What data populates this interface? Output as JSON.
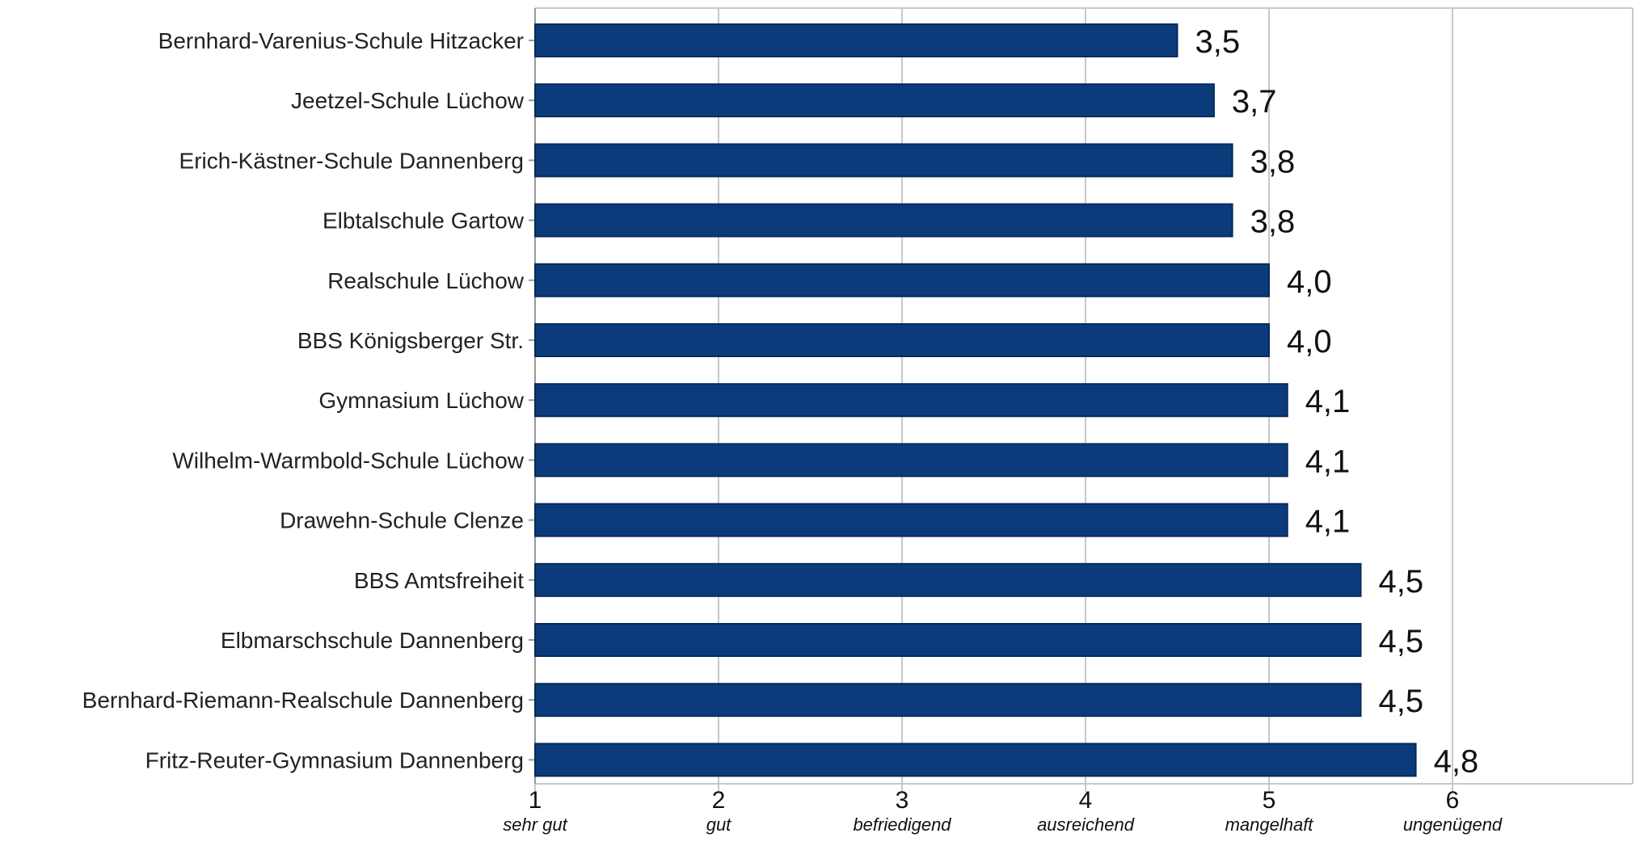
{
  "chart_data": {
    "type": "bar",
    "orientation": "horizontal",
    "categories": [
      "Bernhard-Varenius-Schule Hitzacker",
      "Jeetzel-Schule Lüchow",
      "Erich-Kästner-Schule Dannenberg",
      "Elbtalschule Gartow",
      "Realschule Lüchow",
      "BBS Königsberger Str.",
      "Gymnasium Lüchow",
      "Wilhelm-Warmbold-Schule Lüchow",
      "Drawehn-Schule Clenze",
      "BBS Amtsfreiheit",
      "Elbmarschschule Dannenberg",
      "Bernhard-Riemann-Realschule Dannenberg",
      "Fritz-Reuter-Gymnasium Dannenberg"
    ],
    "values": [
      3.5,
      3.7,
      3.8,
      3.8,
      4.0,
      4.0,
      4.1,
      4.1,
      4.1,
      4.5,
      4.5,
      4.5,
      4.8
    ],
    "value_labels": [
      "3,5",
      "3,7",
      "3,8",
      "3,8",
      "4,0",
      "4,0",
      "4,1",
      "4,1",
      "4,1",
      "4,5",
      "4,5",
      "4,5",
      "4,8"
    ],
    "x_ticks": [
      "1",
      "2",
      "3",
      "4",
      "5",
      "6"
    ],
    "x_tick_sublabels": [
      "sehr gut",
      "gut",
      "befriedigend",
      "ausreichend",
      "mangelhaft",
      "ungenügend"
    ],
    "xlim": [
      1,
      7
    ],
    "grid": "vertical",
    "bar_color": "#0b3b7b",
    "bar_edge_color": "#062a5a",
    "grid_color": "#c8c8c8",
    "title": "",
    "xlabel": "",
    "ylabel": ""
  }
}
